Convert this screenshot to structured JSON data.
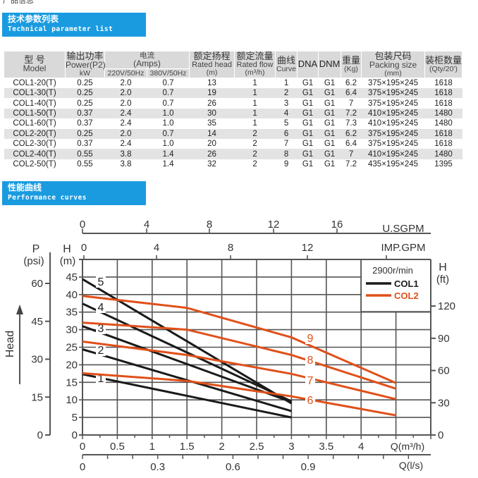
{
  "page_crumb": "产品信息",
  "section1": {
    "title_cn": "技术参数列表",
    "title_en": "Technical parameter list"
  },
  "section2": {
    "title_cn": "性能曲线",
    "title_en": "Performance curves"
  },
  "table": {
    "headers": {
      "model": [
        "型 号",
        "Model"
      ],
      "power": [
        "输出功率",
        "Power(P2)",
        "kW"
      ],
      "amps": [
        "电流",
        "(Amps)"
      ],
      "amps_sub": [
        "220V/50Hz",
        "380V/50Hz"
      ],
      "head": [
        "额定扬程",
        "Rated head",
        "(m)"
      ],
      "flow": [
        "额定流量",
        "Rated flow",
        "(m³/h)"
      ],
      "curve": [
        "曲线",
        "Curve"
      ],
      "dna": "DNA",
      "dnm": "DNM",
      "weight": [
        "重量",
        "(Kg)"
      ],
      "packing": [
        "包装尺码",
        "Packing size",
        "(mm)"
      ],
      "qty": [
        "装柜数量",
        "(Qty/20')"
      ]
    },
    "rows": [
      [
        "COL1-20(T)",
        "0.25",
        "2.0",
        "0.7",
        "13",
        "1",
        "1",
        "G1",
        "G1",
        "6.2",
        "375×195×245",
        "1618"
      ],
      [
        "COL1-30(T)",
        "0.25",
        "2.0",
        "0.7",
        "19",
        "1",
        "2",
        "G1",
        "G1",
        "6.4",
        "375×195×245",
        "1618"
      ],
      [
        "COL1-40(T)",
        "0.25",
        "2.0",
        "0.7",
        "26",
        "1",
        "3",
        "G1",
        "G1",
        "7",
        "375×195×245",
        "1618"
      ],
      [
        "COL1-50(T)",
        "0.37",
        "2.4",
        "1.0",
        "30",
        "1",
        "4",
        "G1",
        "G1",
        "7.2",
        "410×195×245",
        "1480"
      ],
      [
        "COL1-60(T)",
        "0.37",
        "2.4",
        "1.0",
        "35",
        "1",
        "5",
        "G1",
        "G1",
        "7.3",
        "410×195×245",
        "1480"
      ],
      [
        "COL2-20(T)",
        "0.25",
        "2.0",
        "0.7",
        "14",
        "2",
        "6",
        "G1",
        "G1",
        "6.2",
        "375×195×245",
        "1618"
      ],
      [
        "COL2-30(T)",
        "0.37",
        "2.4",
        "1.0",
        "20",
        "2",
        "7",
        "G1",
        "G1",
        "6.4",
        "375×195×245",
        "1618"
      ],
      [
        "COL2-40(T)",
        "0.55",
        "3.8",
        "1.4",
        "26",
        "2",
        "8",
        "G1",
        "G1",
        "7",
        "410×195×245",
        "1480"
      ],
      [
        "COL2-50(T)",
        "0.55",
        "3.8",
        "1.4",
        "32",
        "2",
        "9",
        "G1",
        "G1",
        "7.2",
        "435×195×245",
        "1395"
      ]
    ]
  },
  "chart_data": {
    "type": "line",
    "colors": {
      "COL1": "#1a1a1a",
      "COL2": "#e0501a",
      "grid": "#555555"
    },
    "xlabel": "Q(m³/h)",
    "xlim": [
      0,
      5
    ],
    "xticks": [
      "0",
      "0.5",
      "1",
      "1.5",
      "2",
      "2.5",
      "3",
      "3.5",
      "4"
    ],
    "x2label": "Q(l/s)",
    "x2ticks": [
      "0",
      "0.3",
      "0.6",
      "0.9"
    ],
    "top1label": "U.SGPM",
    "top1ticks": [
      "0",
      "4",
      "8",
      "12",
      "16"
    ],
    "top2label": "IMP.GPM",
    "top2ticks": [
      "0",
      "4",
      "8",
      "12"
    ],
    "ylabel_m": [
      "H",
      "(m)"
    ],
    "ylim": [
      0,
      50
    ],
    "yticks": [
      "0",
      "5",
      "10",
      "15",
      "20",
      "25",
      "30",
      "35",
      "40",
      "45"
    ],
    "ylabel_psi": [
      "P",
      "(psi)"
    ],
    "psiticks": [
      "0",
      "15",
      "30",
      "45",
      "60"
    ],
    "ylabel_ft": [
      "H",
      "(ft)"
    ],
    "ftticks": [
      "0",
      "30",
      "60",
      "90",
      "120"
    ],
    "axis_title": "Head",
    "legend": {
      "speed": "2900r/min",
      "items": [
        "COL1",
        "COL2"
      ],
      "placement": "top-right"
    },
    "series": [
      {
        "name": "1",
        "model": "COL1",
        "points": [
          [
            0,
            17.3
          ],
          [
            3,
            5
          ]
        ]
      },
      {
        "name": "2",
        "model": "COL1",
        "points": [
          [
            0,
            24.4
          ],
          [
            3,
            6.8
          ]
        ]
      },
      {
        "name": "3",
        "model": "COL1",
        "points": [
          [
            0,
            31
          ],
          [
            3,
            9.4
          ]
        ]
      },
      {
        "name": "4",
        "model": "COL1",
        "points": [
          [
            0,
            37.4
          ],
          [
            3,
            9.6
          ]
        ]
      },
      {
        "name": "5",
        "model": "COL1",
        "points": [
          [
            0,
            44.4
          ],
          [
            3,
            9
          ]
        ]
      },
      {
        "name": "6",
        "model": "COL2",
        "points": [
          [
            0,
            17.6
          ],
          [
            1.5,
            15.4
          ],
          [
            3,
            11
          ],
          [
            4.5,
            5.6
          ]
        ]
      },
      {
        "name": "7",
        "model": "COL2",
        "points": [
          [
            0,
            26.6
          ],
          [
            1.5,
            22.8
          ],
          [
            3,
            17.4
          ],
          [
            4.5,
            10.2
          ]
        ]
      },
      {
        "name": "8",
        "model": "COL2",
        "points": [
          [
            0,
            32
          ],
          [
            1.5,
            30
          ],
          [
            3,
            22.8
          ],
          [
            4.5,
            13.2
          ]
        ]
      },
      {
        "name": "9",
        "model": "COL2",
        "points": [
          [
            0,
            39.6
          ],
          [
            1.5,
            36.2
          ],
          [
            3,
            27.8
          ],
          [
            4.5,
            14.8
          ]
        ]
      }
    ]
  }
}
